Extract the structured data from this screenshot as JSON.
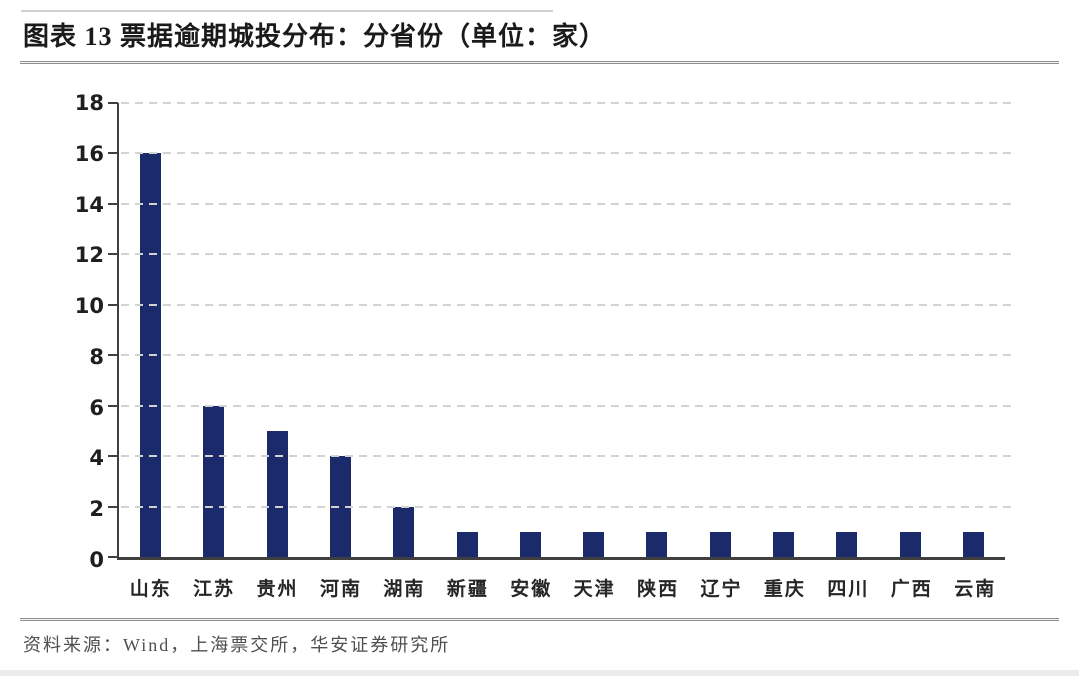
{
  "figure": {
    "title": "图表 13 票据逾期城投分布：分省份（单位：家）",
    "source": "资料来源：Wind，上海票交所，华安证券研究所"
  },
  "colors": {
    "bar": "#1a2a6b",
    "axis": "#3f3f3f",
    "gridline": "#d3d3d3",
    "separator": "#8f8f8f",
    "title_text": "#1a1a1a",
    "source_text": "#4f4f4f"
  },
  "chart_data": {
    "type": "bar",
    "title": "票据逾期城投分布：分省份（单位：家）",
    "unit": "家",
    "categories": [
      "山东",
      "江苏",
      "贵州",
      "河南",
      "湖南",
      "新疆",
      "安徽",
      "天津",
      "陕西",
      "辽宁",
      "重庆",
      "四川",
      "广西",
      "云南"
    ],
    "values": [
      16,
      6,
      5,
      4,
      2,
      1,
      1,
      1,
      1,
      1,
      1,
      1,
      1,
      1
    ],
    "xlabel": "",
    "ylabel": "",
    "ylim": [
      0,
      18
    ],
    "yticks": [
      0,
      2,
      4,
      6,
      8,
      10,
      12,
      14,
      16,
      18
    ],
    "grid": "horizontal-dashed",
    "legend_position": "none"
  }
}
